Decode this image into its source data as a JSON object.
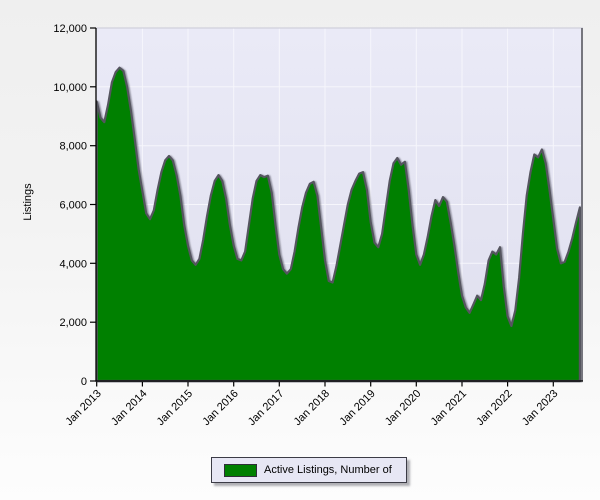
{
  "chart_data": {
    "type": "area",
    "title": "",
    "xlabel": "",
    "ylabel": "Listings",
    "ylim": [
      0,
      12000
    ],
    "ytick_step": 2000,
    "y_tick_labels": [
      "0",
      "2,000",
      "4,000",
      "6,000",
      "8,000",
      "10,000",
      "12,000"
    ],
    "x_tick_labels": [
      "Jan 2013",
      "Jan 2014",
      "Jan 2015",
      "Jan 2016",
      "Jan 2017",
      "Jan 2018",
      "Jan 2019",
      "Jan 2020",
      "Jan 2021",
      "Jan 2022",
      "Jan 2023"
    ],
    "grid": true,
    "legend_position": "bottom",
    "x_start": "Jan 2013",
    "x_interval": "monthly",
    "series": [
      {
        "name": "Active Listings, Number of",
        "color": "#008000",
        "values": [
          9500,
          8950,
          8800,
          9400,
          10150,
          10500,
          10650,
          10550,
          10000,
          9200,
          8200,
          7200,
          6450,
          5700,
          5500,
          5800,
          6500,
          7100,
          7500,
          7650,
          7500,
          7000,
          6300,
          5300,
          4600,
          4100,
          3950,
          4150,
          4800,
          5600,
          6300,
          6800,
          7000,
          6800,
          6200,
          5300,
          4600,
          4150,
          4100,
          4400,
          5300,
          6200,
          6800,
          7000,
          6930,
          6980,
          6400,
          5300,
          4300,
          3800,
          3650,
          3800,
          4400,
          5200,
          5900,
          6400,
          6700,
          6770,
          6300,
          5200,
          4100,
          3400,
          3350,
          3900,
          4600,
          5300,
          6000,
          6500,
          6800,
          7050,
          7100,
          6500,
          5400,
          4700,
          4550,
          5000,
          5900,
          6800,
          7400,
          7580,
          7350,
          7450,
          6500,
          5300,
          4300,
          3950,
          4300,
          4900,
          5600,
          6150,
          5950,
          6250,
          6100,
          5400,
          4600,
          3700,
          2900,
          2500,
          2320,
          2600,
          2900,
          2750,
          3300,
          4100,
          4400,
          4300,
          4550,
          3200,
          2200,
          1870,
          2400,
          3500,
          5000,
          6300,
          7100,
          7700,
          7600,
          7870,
          7400,
          6500,
          5500,
          4500,
          4000,
          4050,
          4400,
          4850,
          5400,
          5900
        ]
      }
    ]
  },
  "colors": {
    "series_fill": "#008000",
    "series_outline": "#55555f",
    "plot_bg_top": "#eaeaf7",
    "plot_bg_bottom": "#dfdfee",
    "gridline": "#f6f6fc",
    "axis": "#000000",
    "frame_top": "#c9c9d6",
    "frame_right": "#76767e",
    "legend_bg": "#e7e7f4",
    "page_bg_top": "#efefef",
    "page_bg_bottom": "#fdfdfd"
  }
}
